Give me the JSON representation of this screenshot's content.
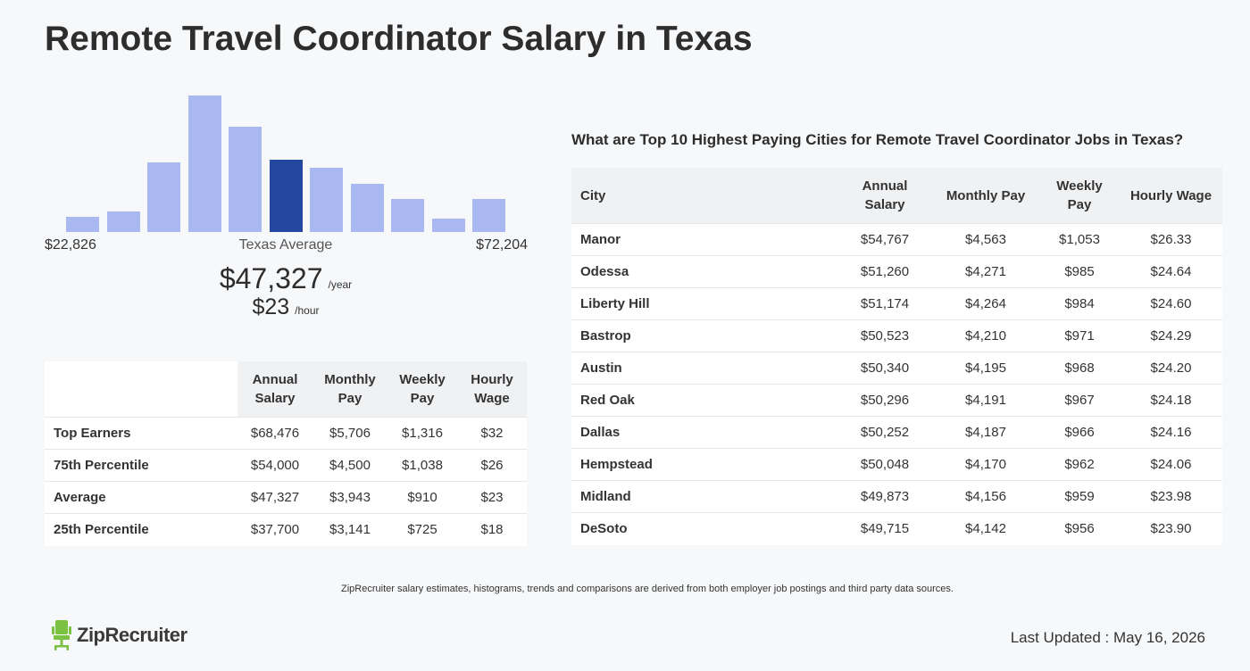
{
  "title": "Remote Travel Coordinator Salary in Texas",
  "histogram": {
    "min_label": "$22,826",
    "max_label": "$72,204",
    "avg_label": "Texas Average",
    "bars": [
      0.11,
      0.15,
      0.51,
      1.0,
      0.77,
      0.53,
      0.47,
      0.35,
      0.24,
      0.1,
      0.24
    ],
    "highlight_index": 5,
    "bar_color": "#a9b8f1",
    "highlight_color": "#2447a0"
  },
  "average": {
    "yearly": "$47,327",
    "yearly_unit": "/year",
    "hourly": "$23",
    "hourly_unit": "/hour"
  },
  "percentile_table": {
    "headers": [
      "Annual Salary",
      "Monthly Pay",
      "Weekly Pay",
      "Hourly Wage"
    ],
    "rows": [
      {
        "label": "Top Earners",
        "values": [
          "$68,476",
          "$5,706",
          "$1,316",
          "$32"
        ]
      },
      {
        "label": "75th Percentile",
        "values": [
          "$54,000",
          "$4,500",
          "$1,038",
          "$26"
        ]
      },
      {
        "label": "Average",
        "values": [
          "$47,327",
          "$3,943",
          "$910",
          "$23"
        ]
      },
      {
        "label": "25th Percentile",
        "values": [
          "$37,700",
          "$3,141",
          "$725",
          "$18"
        ]
      }
    ]
  },
  "cities": {
    "heading": "What are Top 10 Highest Paying Cities for Remote Travel Coordinator Jobs in Texas?",
    "headers": [
      "City",
      "Annual Salary",
      "Monthly Pay",
      "Weekly Pay",
      "Hourly Wage"
    ],
    "rows": [
      {
        "city": "Manor",
        "values": [
          "$54,767",
          "$4,563",
          "$1,053",
          "$26.33"
        ]
      },
      {
        "city": "Odessa",
        "values": [
          "$51,260",
          "$4,271",
          "$985",
          "$24.64"
        ]
      },
      {
        "city": "Liberty Hill",
        "values": [
          "$51,174",
          "$4,264",
          "$984",
          "$24.60"
        ]
      },
      {
        "city": "Bastrop",
        "values": [
          "$50,523",
          "$4,210",
          "$971",
          "$24.29"
        ]
      },
      {
        "city": "Austin",
        "values": [
          "$50,340",
          "$4,195",
          "$968",
          "$24.20"
        ]
      },
      {
        "city": "Red Oak",
        "values": [
          "$50,296",
          "$4,191",
          "$967",
          "$24.18"
        ]
      },
      {
        "city": "Dallas",
        "values": [
          "$50,252",
          "$4,187",
          "$966",
          "$24.16"
        ]
      },
      {
        "city": "Hempstead",
        "values": [
          "$50,048",
          "$4,170",
          "$962",
          "$24.06"
        ]
      },
      {
        "city": "Midland",
        "values": [
          "$49,873",
          "$4,156",
          "$959",
          "$23.98"
        ]
      },
      {
        "city": "DeSoto",
        "values": [
          "$49,715",
          "$4,142",
          "$956",
          "$23.90"
        ]
      }
    ]
  },
  "footer": {
    "disclaimer": "ZipRecruiter salary estimates, histograms, trends and comparisons are derived from both employer job postings and third party data sources.",
    "logo_text": "ZipRecruiter",
    "logo_icon": "chair-icon",
    "logo_color": "#7bc142",
    "last_updated": "Last Updated : May 16, 2026"
  }
}
